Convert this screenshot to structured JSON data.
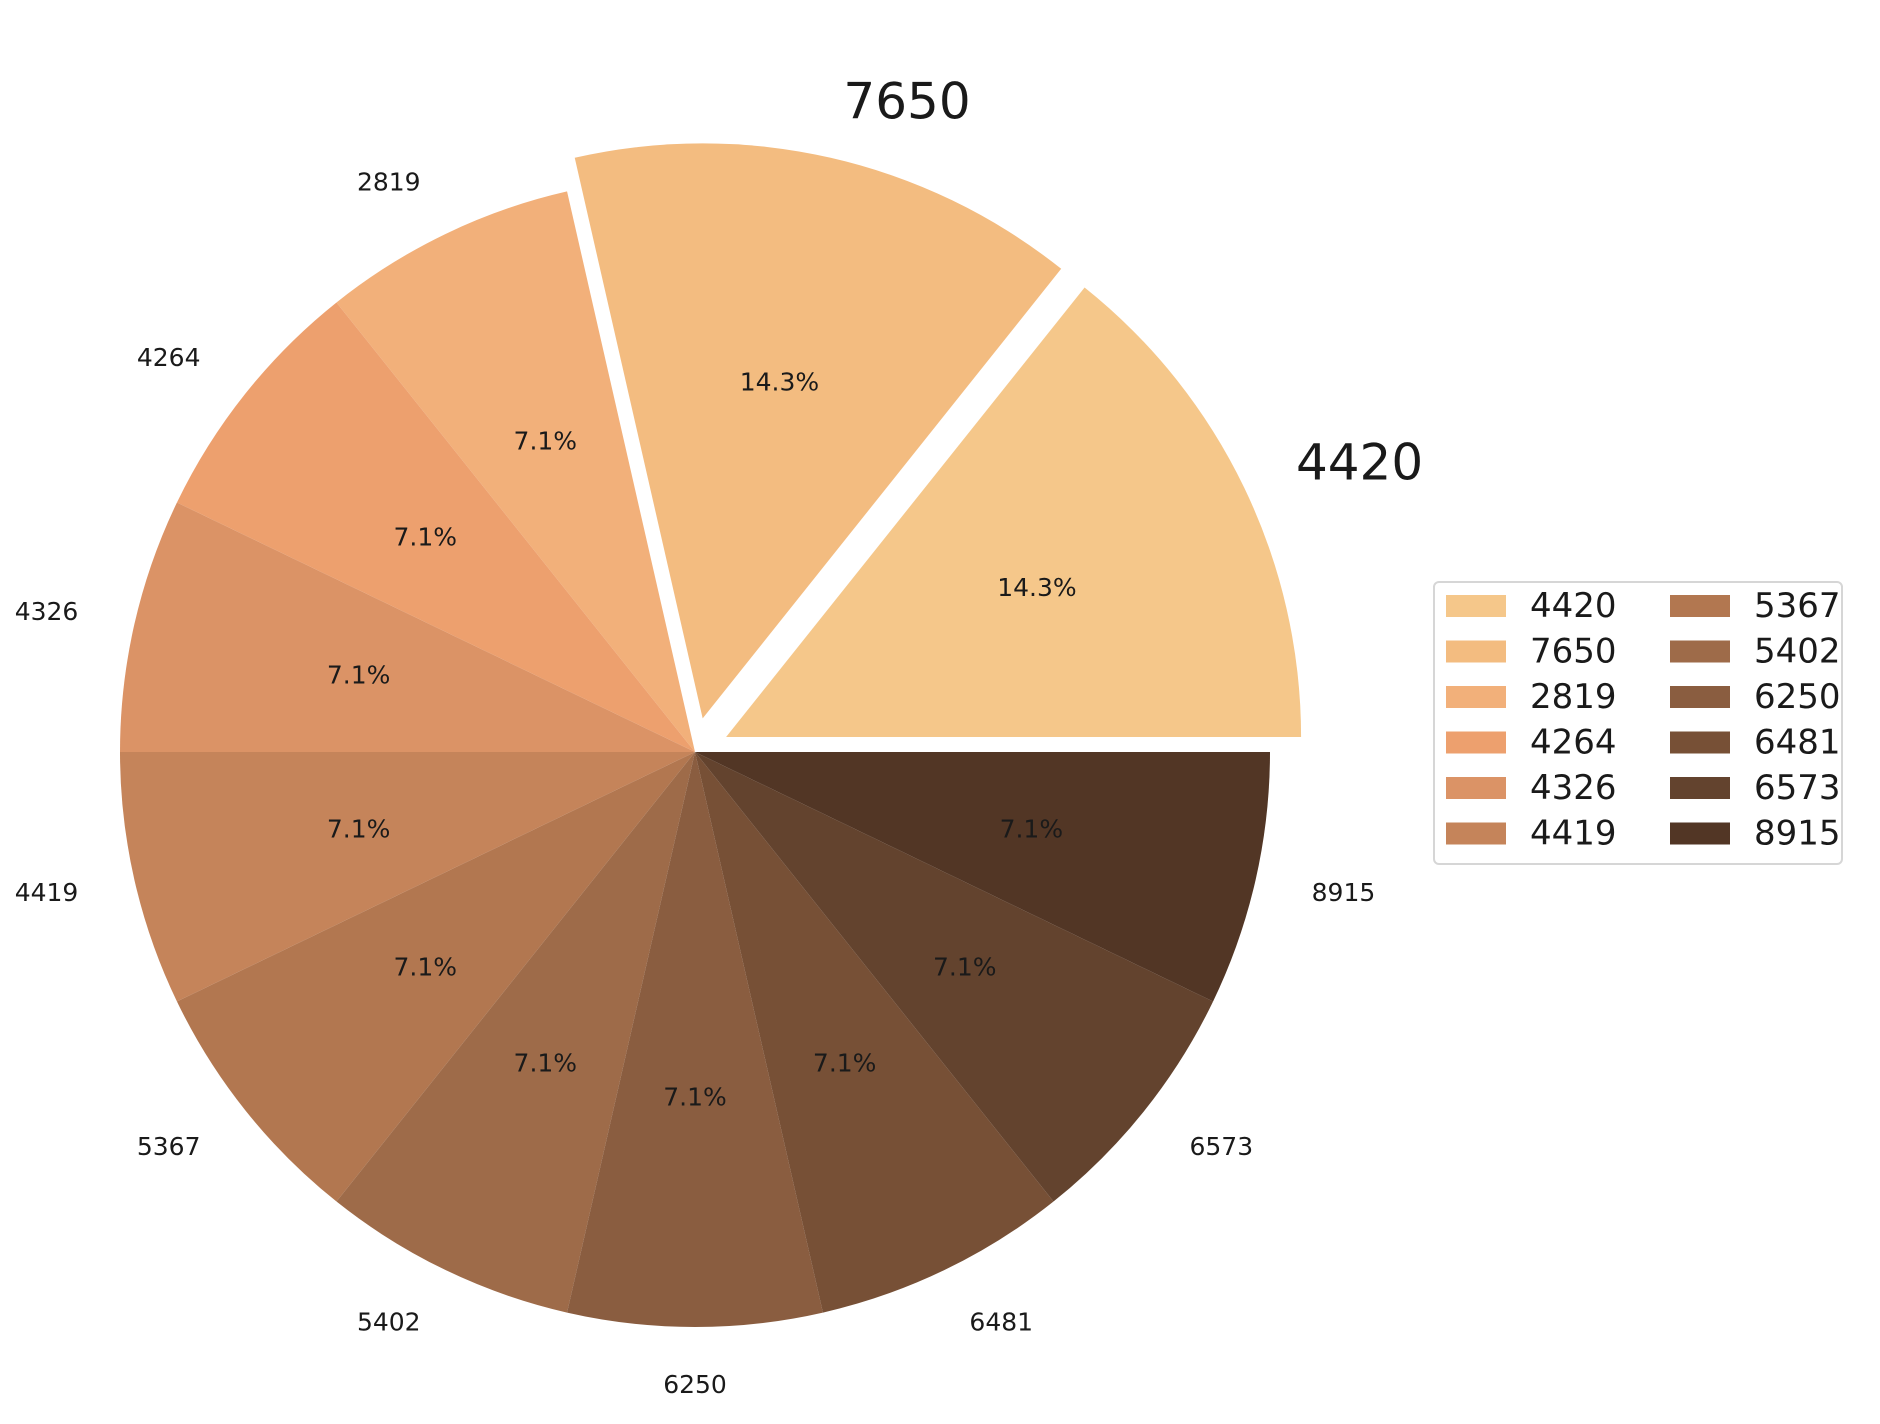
{
  "chart_data": {
    "type": "pie",
    "title": "",
    "start_angle_deg": 0,
    "direction": "counterclockwise",
    "slices": [
      {
        "label": "4420",
        "value": 2,
        "pct_label": "14.3%",
        "color": "#F5C78A",
        "exploded": true
      },
      {
        "label": "7650",
        "value": 2,
        "pct_label": "14.3%",
        "color": "#F3BC80",
        "exploded": true
      },
      {
        "label": "2819",
        "value": 1,
        "pct_label": "7.1%",
        "color": "#F2B07A",
        "exploded": false
      },
      {
        "label": "4264",
        "value": 1,
        "pct_label": "7.1%",
        "color": "#EDA06E",
        "exploded": false
      },
      {
        "label": "4326",
        "value": 1,
        "pct_label": "7.1%",
        "color": "#DB9366",
        "exploded": false
      },
      {
        "label": "4419",
        "value": 1,
        "pct_label": "7.1%",
        "color": "#C5845A",
        "exploded": false
      },
      {
        "label": "5367",
        "value": 1,
        "pct_label": "7.1%",
        "color": "#B27750",
        "exploded": false
      },
      {
        "label": "5402",
        "value": 1,
        "pct_label": "7.1%",
        "color": "#9E6B49",
        "exploded": false
      },
      {
        "label": "6250",
        "value": 1,
        "pct_label": "7.1%",
        "color": "#8A5D40",
        "exploded": false
      },
      {
        "label": "6481",
        "value": 1,
        "pct_label": "7.1%",
        "color": "#775036",
        "exploded": false
      },
      {
        "label": "6573",
        "value": 1,
        "pct_label": "7.1%",
        "color": "#63432E",
        "exploded": false
      },
      {
        "label": "8915",
        "value": 1,
        "pct_label": "7.1%",
        "color": "#523625",
        "exploded": false
      }
    ],
    "legend": {
      "placement": "center-right",
      "columns": 2,
      "entries": [
        "4420",
        "7650",
        "2819",
        "4264",
        "4326",
        "4419",
        "5367",
        "5402",
        "6250",
        "6481",
        "6573",
        "8915"
      ]
    }
  }
}
